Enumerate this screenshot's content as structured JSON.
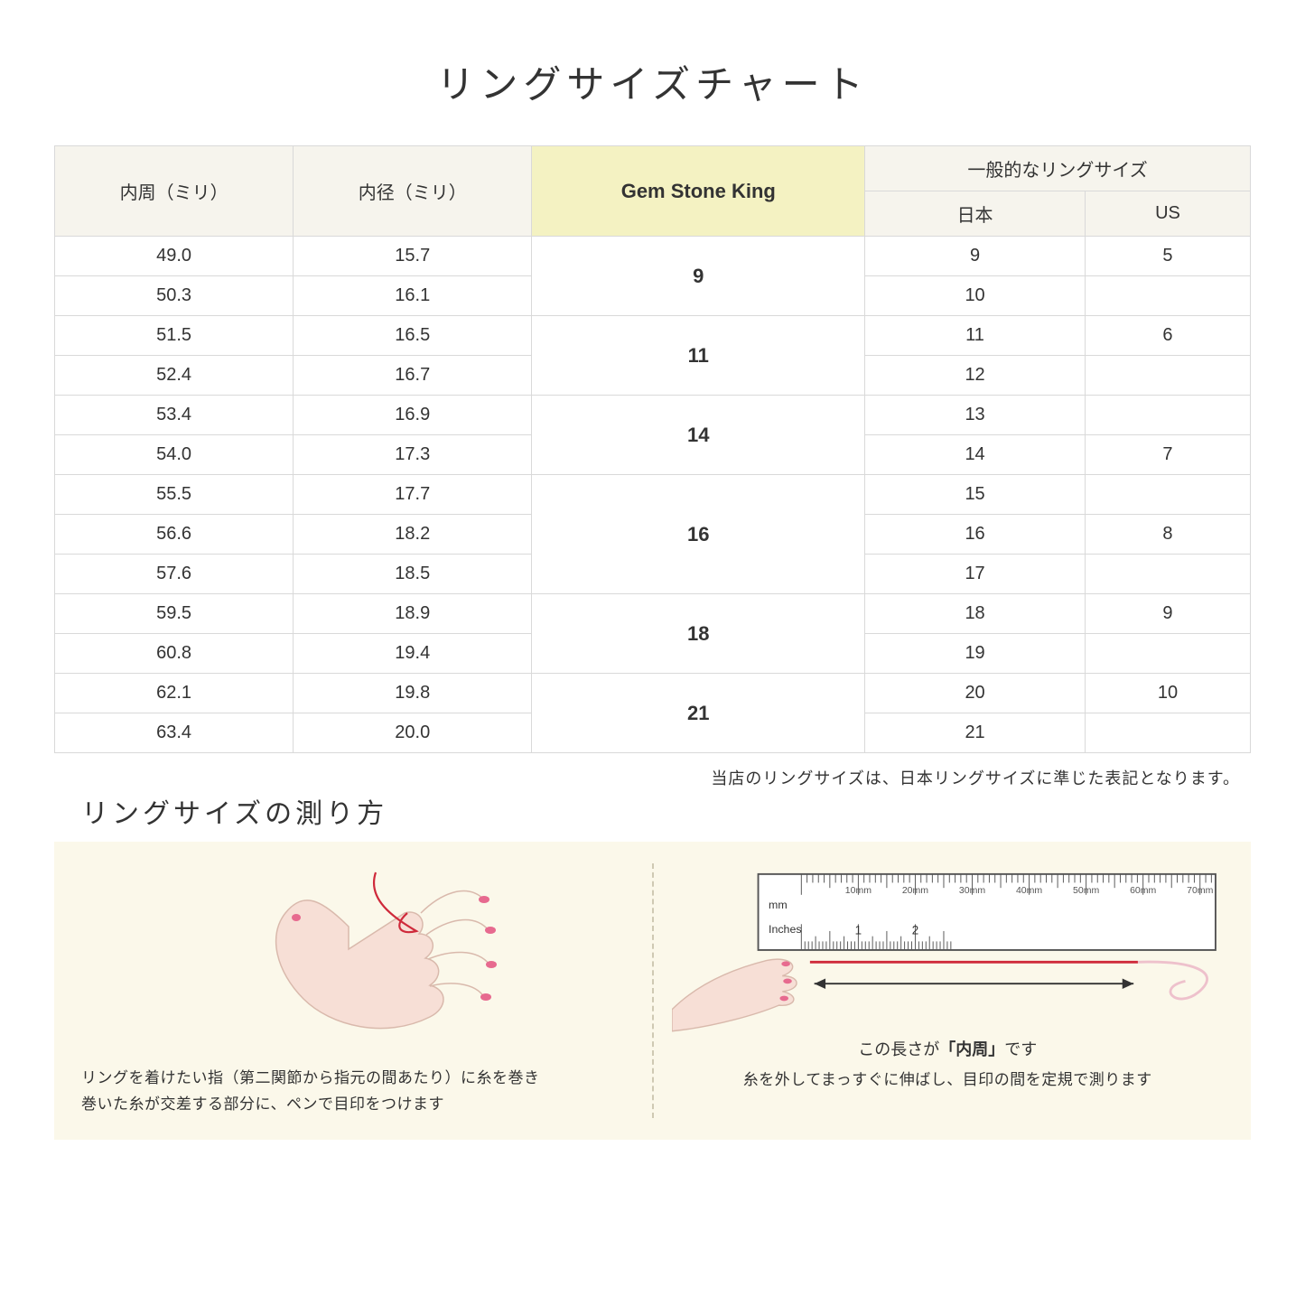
{
  "title": "リングサイズチャート",
  "headers": {
    "col1": "内周（ミリ）",
    "col2": "内径（ミリ）",
    "gsk": "Gem Stone King",
    "general": "一般的なリングサイズ",
    "jp": "日本",
    "us": "US"
  },
  "groups": [
    {
      "gsk": "9",
      "rows": [
        {
          "c": "49.0",
          "d": "15.7",
          "jp": "9",
          "us": "5"
        },
        {
          "c": "50.3",
          "d": "16.1",
          "jp": "10",
          "us": ""
        }
      ]
    },
    {
      "gsk": "11",
      "rows": [
        {
          "c": "51.5",
          "d": "16.5",
          "jp": "11",
          "us": "6"
        },
        {
          "c": "52.4",
          "d": "16.7",
          "jp": "12",
          "us": ""
        }
      ]
    },
    {
      "gsk": "14",
      "rows": [
        {
          "c": "53.4",
          "d": "16.9",
          "jp": "13",
          "us": ""
        },
        {
          "c": "54.0",
          "d": "17.3",
          "jp": "14",
          "us": "7"
        }
      ]
    },
    {
      "gsk": "16",
      "rows": [
        {
          "c": "55.5",
          "d": "17.7",
          "jp": "15",
          "us": ""
        },
        {
          "c": "56.6",
          "d": "18.2",
          "jp": "16",
          "us": "8"
        },
        {
          "c": "57.6",
          "d": "18.5",
          "jp": "17",
          "us": ""
        }
      ]
    },
    {
      "gsk": "18",
      "rows": [
        {
          "c": "59.5",
          "d": "18.9",
          "jp": "18",
          "us": "9"
        },
        {
          "c": "60.8",
          "d": "19.4",
          "jp": "19",
          "us": ""
        }
      ]
    },
    {
      "gsk": "21",
      "rows": [
        {
          "c": "62.1",
          "d": "19.8",
          "jp": "20",
          "us": "10"
        },
        {
          "c": "63.4",
          "d": "20.0",
          "jp": "21",
          "us": ""
        }
      ]
    }
  ],
  "note": "当店のリングサイズは、日本リングサイズに準じた表記となります。",
  "howto_title": "リングサイズの測り方",
  "left_caption": "リングを着けたい指（第二関節から指元の間あたり）に糸を巻き\n巻いた糸が交差する部分に、ペンで目印をつけます",
  "right_caption": "糸を外してまっすぐに伸ばし、目印の間を定規で測ります",
  "measure_label_pre": "この長さが",
  "measure_label_em": "「内周」",
  "measure_label_post": "です",
  "ruler": {
    "unit_mm": "mm",
    "unit_in": "Inches",
    "mm_labels": [
      "10mm",
      "20mm",
      "30mm",
      "40mm",
      "50mm",
      "60mm",
      "70mm"
    ],
    "in_labels": [
      "1",
      "2"
    ]
  },
  "colors": {
    "header_bg": "#f6f4ed",
    "gsk_bg": "#f4f2c2",
    "border": "#d9d9d9",
    "panel_bg": "#fbf8ea",
    "hand_fill": "#f7dfd6",
    "hand_stroke": "#d9b9ac",
    "nail": "#e76a8f",
    "thread": "#cf2a3b",
    "ruler_stroke": "#555"
  }
}
